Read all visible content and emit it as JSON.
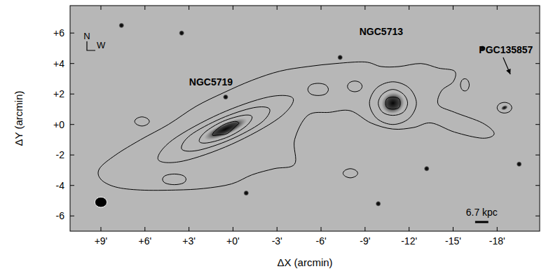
{
  "chart_data": {
    "type": "contour_overlay",
    "xlabel": "ΔX (arcmin)",
    "ylabel": "ΔY (arcmin)",
    "xlim": [
      11.1,
      -20.9
    ],
    "ylim": [
      -7.0,
      7.8
    ],
    "xticks": [
      {
        "value": 9,
        "label": "+9'"
      },
      {
        "value": 6,
        "label": "+6'"
      },
      {
        "value": 3,
        "label": "+3'"
      },
      {
        "value": 0,
        "label": "+0'"
      },
      {
        "value": -3,
        "label": "-3'"
      },
      {
        "value": -6,
        "label": "-6'"
      },
      {
        "value": -9,
        "label": "-9'"
      },
      {
        "value": -12,
        "label": "-12'"
      },
      {
        "value": -15,
        "label": "-15'"
      },
      {
        "value": -18,
        "label": "-18'"
      }
    ],
    "yticks": [
      {
        "value": 6,
        "label": "+6"
      },
      {
        "value": 4,
        "label": "+4"
      },
      {
        "value": 2,
        "label": "+2"
      },
      {
        "value": 0,
        "label": "+0"
      },
      {
        "value": -2,
        "label": "-2"
      },
      {
        "value": -4,
        "label": "-4"
      },
      {
        "value": -6,
        "label": "-6"
      }
    ],
    "grid": false,
    "color": "#000000",
    "galaxies": [
      {
        "name": "NGC5719",
        "x": 0.5,
        "y": -0.3,
        "major": 1.6,
        "minor": 0.4,
        "label_x": 1.5,
        "label_y": 2.8
      },
      {
        "name": "NGC5713",
        "x": -10.9,
        "y": 1.4,
        "major": 0.8,
        "minor": 0.7,
        "label_x": -10.1,
        "label_y": 6.1
      },
      {
        "name": "PGC135857",
        "x": -18.5,
        "y": 1.1,
        "major": 0.25,
        "minor": 0.15,
        "label_x": -18.6,
        "label_y": 4.9,
        "arrow": [
          -18.9,
          3.3
        ]
      }
    ],
    "contours": [
      [
        [
          9.1,
          -2.9
        ],
        [
          8.0,
          -2.0
        ],
        [
          6.3,
          -1.0
        ],
        [
          4.4,
          0.0
        ],
        [
          2.5,
          1.2
        ],
        [
          0.6,
          2.1
        ],
        [
          -1.3,
          2.9
        ],
        [
          -3.2,
          3.5
        ],
        [
          -5.1,
          3.8
        ],
        [
          -7.0,
          4.0
        ],
        [
          -9.0,
          4.1
        ],
        [
          -10.1,
          3.8
        ],
        [
          -11.3,
          3.8
        ],
        [
          -12.8,
          4.0
        ],
        [
          -14.0,
          3.7
        ],
        [
          -15.1,
          3.5
        ],
        [
          -15.0,
          2.8
        ],
        [
          -14.2,
          2.2
        ],
        [
          -14.0,
          1.3
        ],
        [
          -15.1,
          0.8
        ],
        [
          -17.0,
          0.1
        ],
        [
          -17.8,
          -0.6
        ],
        [
          -17.0,
          -0.9
        ],
        [
          -15.1,
          -0.5
        ],
        [
          -13.5,
          0.1
        ],
        [
          -12.3,
          -0.2
        ],
        [
          -10.9,
          -0.3
        ],
        [
          -9.4,
          0.1
        ],
        [
          -8.0,
          0.9
        ],
        [
          -6.6,
          0.8
        ],
        [
          -5.1,
          0.6
        ],
        [
          -4.2,
          -1.0
        ],
        [
          -4.2,
          -2.6
        ],
        [
          -2.8,
          -2.9
        ],
        [
          -1.3,
          -3.3
        ],
        [
          0.1,
          -3.9
        ],
        [
          2.0,
          -4.2
        ],
        [
          3.9,
          -4.3
        ],
        [
          6.3,
          -4.3
        ],
        [
          8.0,
          -4.1
        ],
        [
          9.0,
          -3.6
        ]
      ],
      [
        [
          -4.1,
          1.7
        ],
        [
          -2.4,
          1.8
        ],
        [
          0.9,
          0.7
        ],
        [
          4.1,
          -1.0
        ],
        [
          5.1,
          -2.3
        ],
        [
          3.4,
          -2.4
        ],
        [
          0.1,
          -1.3
        ],
        [
          -3.1,
          0.4
        ]
      ],
      [
        [
          -2.5,
          1.0
        ],
        [
          -1.4,
          1.1
        ],
        [
          0.8,
          0.4
        ],
        [
          2.9,
          -0.7
        ],
        [
          3.5,
          -1.6
        ],
        [
          2.4,
          -1.7
        ],
        [
          0.2,
          -1.0
        ],
        [
          -1.9,
          0.1
        ]
      ],
      [
        [
          -1.3,
          0.5
        ],
        [
          -0.7,
          0.6
        ],
        [
          0.7,
          0.2
        ],
        [
          1.9,
          -0.5
        ],
        [
          2.3,
          -1.1
        ],
        [
          1.7,
          -1.2
        ],
        [
          0.3,
          -0.8
        ],
        [
          -0.9,
          -0.1
        ]
      ],
      [
        [
          -0.4,
          0.1
        ],
        [
          -0.1,
          0.2
        ],
        [
          0.6,
          0.0
        ],
        [
          1.2,
          -0.4
        ],
        [
          1.4,
          -0.7
        ],
        [
          1.1,
          -0.7
        ],
        [
          0.4,
          -0.6
        ],
        [
          -0.2,
          -0.1
        ]
      ],
      [
        [
          -9.3,
          1.4
        ],
        [
          -9.8,
          2.4
        ],
        [
          -10.9,
          2.8
        ],
        [
          -12.0,
          2.4
        ],
        [
          -12.5,
          1.4
        ],
        [
          -12.0,
          0.4
        ],
        [
          -10.9,
          0.0
        ],
        [
          -9.8,
          0.4
        ]
      ],
      [
        [
          -9.9,
          1.4
        ],
        [
          -10.2,
          2.0
        ],
        [
          -10.9,
          2.3
        ],
        [
          -11.6,
          2.0
        ],
        [
          -11.9,
          1.4
        ],
        [
          -11.6,
          0.8
        ],
        [
          -10.9,
          0.6
        ],
        [
          -10.2,
          0.8
        ]
      ],
      [
        [
          -10.4,
          1.4
        ],
        [
          -10.5,
          1.7
        ],
        [
          -10.9,
          1.8
        ],
        [
          -11.3,
          1.7
        ],
        [
          -11.4,
          1.4
        ],
        [
          -11.3,
          1.1
        ],
        [
          -10.9,
          1.0
        ],
        [
          -10.5,
          1.1
        ]
      ],
      [
        [
          -18.0,
          1.1
        ],
        [
          -18.15,
          1.35
        ],
        [
          -18.5,
          1.45
        ],
        [
          -18.85,
          1.35
        ],
        [
          -19.0,
          1.1
        ],
        [
          -18.85,
          0.85
        ],
        [
          -18.5,
          0.75
        ],
        [
          -18.15,
          0.85
        ]
      ],
      [
        [
          4.8,
          -3.6
        ],
        [
          4.6,
          -3.35
        ],
        [
          4.0,
          -3.25
        ],
        [
          3.4,
          -3.35
        ],
        [
          3.2,
          -3.6
        ],
        [
          3.4,
          -3.85
        ],
        [
          4.0,
          -3.95
        ],
        [
          4.6,
          -3.85
        ]
      ],
      [
        [
          6.7,
          0.2
        ],
        [
          6.55,
          0.4
        ],
        [
          6.2,
          0.5
        ],
        [
          5.85,
          0.4
        ],
        [
          5.7,
          0.2
        ],
        [
          5.85,
          0.0
        ],
        [
          6.2,
          -0.1
        ],
        [
          6.55,
          0.0
        ]
      ],
      [
        [
          -7.5,
          -3.2
        ],
        [
          -7.65,
          -3.0
        ],
        [
          -8.0,
          -2.9
        ],
        [
          -8.35,
          -3.0
        ],
        [
          -8.5,
          -3.2
        ],
        [
          -8.35,
          -3.4
        ],
        [
          -8.0,
          -3.5
        ],
        [
          -7.65,
          -3.4
        ]
      ],
      [
        [
          -15.5,
          2.6
        ],
        [
          -15.6,
          2.9
        ],
        [
          -15.8,
          3.0
        ],
        [
          -16.0,
          2.9
        ],
        [
          -16.1,
          2.6
        ],
        [
          -16.0,
          2.3
        ],
        [
          -15.8,
          2.2
        ],
        [
          -15.6,
          2.3
        ]
      ],
      [
        [
          -5.1,
          2.3
        ],
        [
          -5.3,
          2.6
        ],
        [
          -5.8,
          2.7
        ],
        [
          -6.3,
          2.6
        ],
        [
          -6.5,
          2.3
        ],
        [
          -6.3,
          2.0
        ],
        [
          -5.8,
          1.9
        ],
        [
          -5.3,
          2.0
        ]
      ],
      [
        [
          -7.8,
          2.5
        ],
        [
          -7.95,
          2.75
        ],
        [
          -8.3,
          2.85
        ],
        [
          -8.65,
          2.75
        ],
        [
          -8.8,
          2.5
        ],
        [
          -8.65,
          2.25
        ],
        [
          -8.3,
          2.15
        ],
        [
          -7.95,
          2.25
        ]
      ]
    ],
    "stars": [
      [
        7.6,
        6.5
      ],
      [
        -7.3,
        4.4
      ],
      [
        0.5,
        1.8
      ],
      [
        -0.9,
        -4.5
      ],
      [
        -19.5,
        -2.6
      ],
      [
        -17.0,
        5.0
      ],
      [
        -13.2,
        -2.9
      ],
      [
        3.5,
        6.0
      ],
      [
        -9.9,
        -5.2
      ]
    ],
    "beam": {
      "x": 9.0,
      "y": -5.1,
      "major": 0.55,
      "minor": 0.45
    },
    "scale_bar": {
      "label": "6.7 kpc",
      "x": -16.5,
      "y": -6.4,
      "length": 0.9
    },
    "compass": {
      "north": "N",
      "west": "W"
    }
  }
}
